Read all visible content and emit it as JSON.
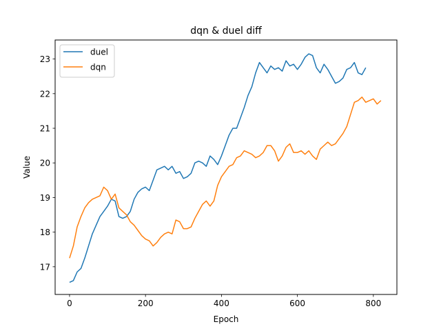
{
  "chart_data": {
    "type": "line",
    "title": "dqn & duel diff",
    "xlabel": "Epoch",
    "ylabel": "Value",
    "xlim": [
      -38,
      862
    ],
    "ylim": [
      16.2,
      23.55
    ],
    "xticks": [
      0,
      200,
      400,
      600,
      800
    ],
    "yticks": [
      17,
      18,
      19,
      20,
      21,
      22,
      23
    ],
    "grid": false,
    "legend_position": "upper-left",
    "series": [
      {
        "name": "duel",
        "color": "#1f77b4",
        "x": [
          0,
          10,
          20,
          30,
          40,
          50,
          60,
          70,
          80,
          90,
          100,
          110,
          120,
          130,
          140,
          150,
          160,
          170,
          180,
          190,
          200,
          210,
          220,
          230,
          240,
          250,
          260,
          270,
          280,
          290,
          300,
          310,
          320,
          330,
          340,
          350,
          360,
          370,
          380,
          390,
          400,
          410,
          420,
          430,
          440,
          450,
          460,
          470,
          480,
          490,
          500,
          510,
          520,
          530,
          540,
          550,
          560,
          570,
          580,
          590,
          600,
          610,
          620,
          630,
          640,
          650,
          660,
          670,
          680,
          690,
          700,
          710,
          720,
          730,
          740,
          750,
          760,
          770,
          780
        ],
        "values": [
          16.55,
          16.6,
          16.85,
          16.95,
          17.25,
          17.6,
          17.95,
          18.2,
          18.45,
          18.6,
          18.75,
          18.95,
          18.9,
          18.45,
          18.4,
          18.45,
          18.6,
          18.95,
          19.15,
          19.25,
          19.3,
          19.2,
          19.5,
          19.8,
          19.85,
          19.9,
          19.8,
          19.9,
          19.7,
          19.75,
          19.55,
          19.6,
          19.7,
          20.0,
          20.05,
          20.0,
          19.9,
          20.2,
          20.1,
          19.95,
          20.2,
          20.5,
          20.8,
          21.0,
          21.0,
          21.3,
          21.6,
          21.95,
          22.2,
          22.6,
          22.9,
          22.75,
          22.6,
          22.8,
          22.7,
          22.75,
          22.65,
          22.95,
          22.8,
          22.85,
          22.7,
          22.85,
          23.05,
          23.15,
          23.1,
          22.75,
          22.6,
          22.85,
          22.7,
          22.5,
          22.3,
          22.35,
          22.45,
          22.7,
          22.75,
          22.9,
          22.6,
          22.55,
          22.75
        ]
      },
      {
        "name": "dqn",
        "color": "#ff7f0e",
        "x": [
          0,
          10,
          20,
          30,
          40,
          50,
          60,
          70,
          80,
          90,
          100,
          110,
          120,
          130,
          140,
          150,
          160,
          170,
          180,
          190,
          200,
          210,
          220,
          230,
          240,
          250,
          260,
          270,
          280,
          290,
          300,
          310,
          320,
          330,
          340,
          350,
          360,
          370,
          380,
          390,
          400,
          410,
          420,
          430,
          440,
          450,
          460,
          470,
          480,
          490,
          500,
          510,
          520,
          530,
          540,
          550,
          560,
          570,
          580,
          590,
          600,
          610,
          620,
          630,
          640,
          650,
          660,
          670,
          680,
          690,
          700,
          710,
          720,
          730,
          740,
          750,
          760,
          770,
          780,
          790,
          800,
          810,
          820
        ],
        "values": [
          17.25,
          17.6,
          18.15,
          18.45,
          18.7,
          18.85,
          18.95,
          19.0,
          19.05,
          19.3,
          19.2,
          18.95,
          19.1,
          18.7,
          18.6,
          18.5,
          18.3,
          18.2,
          18.05,
          17.9,
          17.8,
          17.75,
          17.6,
          17.7,
          17.85,
          17.95,
          18.0,
          17.95,
          18.35,
          18.3,
          18.1,
          18.1,
          18.15,
          18.4,
          18.6,
          18.8,
          18.9,
          18.75,
          18.9,
          19.35,
          19.6,
          19.75,
          19.9,
          19.95,
          20.15,
          20.2,
          20.35,
          20.3,
          20.25,
          20.15,
          20.2,
          20.3,
          20.5,
          20.5,
          20.35,
          20.05,
          20.2,
          20.45,
          20.55,
          20.3,
          20.3,
          20.35,
          20.25,
          20.35,
          20.2,
          20.1,
          20.4,
          20.5,
          20.6,
          20.5,
          20.55,
          20.7,
          20.85,
          21.05,
          21.4,
          21.75,
          21.8,
          21.9,
          21.75,
          21.8,
          21.85,
          21.7,
          21.8
        ]
      }
    ]
  }
}
